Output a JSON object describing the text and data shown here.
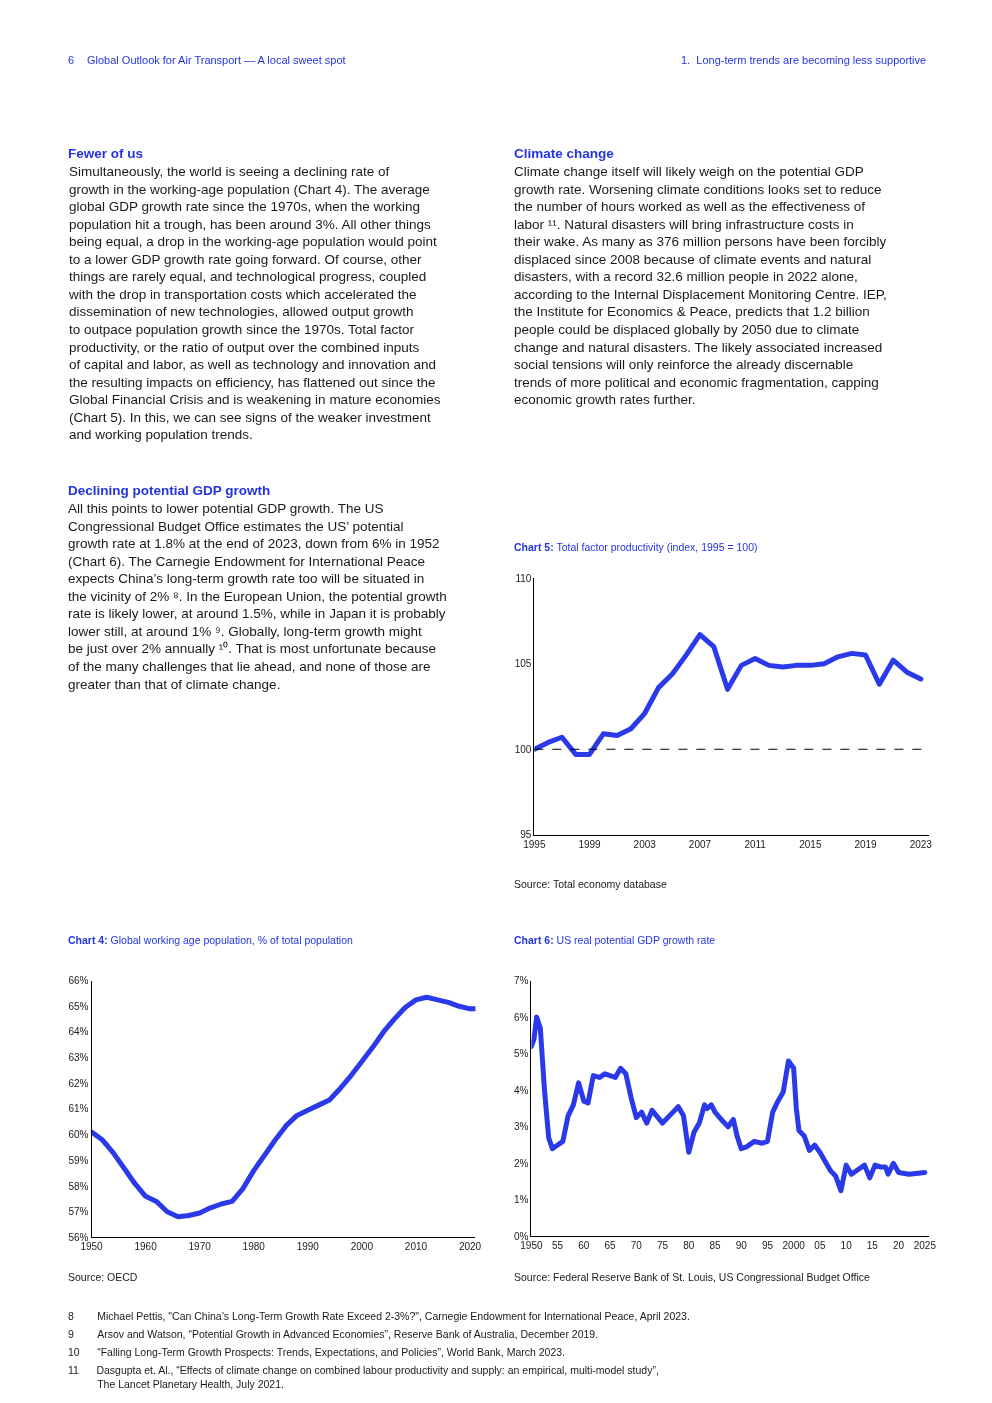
{
  "chart_data": [
    {
      "type": "other",
      "annotations": [
        "6",
        "Global Outlook for Air Transport — A local sweet spot",
        "1.  Long-term trends are becoming less supportive"
      ]
    },
    {
      "type": "other",
      "title": "Fewer of us",
      "annotations": [
        "Simultaneously, the world is seeing a declining rate of\ngrowth in the working-age population (Chart 4). The average\nglobal GDP growth rate since the 1970s, when the working\npopulation hit a trough, has been around 3%. All other things\nbeing equal, a drop in the working-age population would point\nto a lower GDP growth rate going forward. Of course, other\nthings are rarely equal, and technological progress, coupled\nwith the drop in transportation costs which accelerated the\ndissemination of new technologies, allowed output growth\nto outpace population growth since the 1970s. Total factor\nproductivity, or the ratio of output over the combined inputs\nof capital and labor, as well as technology and innovation and\nthe resulting impacts on efficiency, has flattened out since the\nGlobal Financial Crisis and is weakening in mature economies\n(Chart 5). In this, we can see signs of the weaker investment\nand working population trends."
      ]
    },
    {
      "type": "other",
      "title": "Declining potential GDP growth",
      "annotations": [
        "All this points to lower potential GDP growth. The US\nCongressional Budget Office estimates the US’ potential\ngrowth rate at 1.8% at the end of 2023, down from 6% in 1952\n(Chart 6). The Carnegie Endowment for International Peace\nexpects China’s long-term growth rate too will be situated in\nthe vicinity of 2% ⁸. In the European Union, the potential growth\nrate is likely lower, at around 1.5%, while in Japan it is probably\nlower still, at around 1% ⁹. Globally, long-term growth might\nbe just over 2% annually ¹⁰. That is most unfortunate because\nof the many challenges that lie ahead, and none of those are\ngreater than that of climate change."
      ]
    },
    {
      "type": "other",
      "title": "Climate change",
      "annotations": [
        "Climate change itself will likely weigh on the potential GDP\ngrowth rate. Worsening climate conditions looks set to reduce\nthe number of hours worked as well as the effectiveness of\nlabor ¹¹. Natural disasters will bring infrastructure costs in\ntheir wake. As many as 376 million persons have been forcibly\ndisplaced since 2008 because of climate events and natural\ndisasters, with a record 32.6 million people in 2022 alone,\naccording to the Internal Displacement Monitoring Centre. IEP,\nthe Institute for Economics & Peace, predicts that 1.2 billion\npeople could be displaced globally by 2050 due to climate\nchange and natural disasters. The likely associated increased\nsocial tensions will only reinforce the already discernable\ntrends of more political and economic fragmentation, capping\neconomic growth rates further."
      ]
    },
    {
      "type": "line",
      "title": "Chart 5: Total factor productivity (index, 1995 = 100)",
      "color": "#2b3ae8",
      "x": [
        1995,
        1996,
        1997,
        1998,
        1999,
        2000,
        2001,
        2002,
        2003,
        2004,
        2005,
        2006,
        2007,
        2008,
        2009,
        2010,
        2011,
        2012,
        2013,
        2014,
        2015,
        2016,
        2017,
        2018,
        2019,
        2020,
        2021,
        2022,
        2023
      ],
      "values": [
        100.0,
        100.4,
        100.7,
        99.7,
        99.7,
        100.9,
        100.8,
        101.2,
        102.1,
        103.6,
        104.4,
        105.5,
        106.7,
        106.0,
        103.5,
        104.9,
        105.3,
        104.9,
        104.8,
        104.9,
        104.9,
        105.0,
        105.4,
        105.6,
        105.5,
        103.8,
        105.2,
        104.5,
        104.1
      ],
      "xlim": [
        1995,
        2023.6
      ],
      "xticks": [
        1995,
        1999,
        2003,
        2007,
        2011,
        2015,
        2019,
        2023
      ],
      "ylim": [
        95,
        110
      ],
      "yticks": [
        95,
        100,
        105,
        110
      ],
      "ref_lines": [
        {
          "axis": "y",
          "value": 100,
          "line_style": "dashed",
          "color": "#000000"
        }
      ],
      "annotations": [
        "Source: Total economy database"
      ]
    },
    {
      "type": "line",
      "title": "Chart 4: Global working age population, % of total population",
      "color": "#2b3ae8",
      "x": [
        1950,
        1952,
        1954,
        1956,
        1958,
        1960,
        1962,
        1964,
        1966,
        1968,
        1970,
        1972,
        1974,
        1976,
        1978,
        1980,
        1982,
        1984,
        1986,
        1988,
        1990,
        1992,
        1994,
        1996,
        1998,
        2000,
        2002,
        2004,
        2006,
        2008,
        2010,
        2012,
        2014,
        2016,
        2018,
        2020,
        2021
      ],
      "values": [
        60.1,
        59.8,
        59.3,
        58.7,
        58.1,
        57.6,
        57.4,
        57.0,
        56.8,
        56.85,
        56.95,
        57.15,
        57.3,
        57.4,
        57.9,
        58.6,
        59.2,
        59.8,
        60.35,
        60.75,
        60.95,
        61.15,
        61.35,
        61.8,
        62.3,
        62.85,
        63.4,
        64.0,
        64.5,
        64.95,
        65.25,
        65.35,
        65.25,
        65.15,
        65.0,
        64.9,
        64.9
      ],
      "xlim": [
        1950,
        2021
      ],
      "xticks": [
        1950,
        1960,
        1970,
        1980,
        1990,
        2000,
        2010,
        2020
      ],
      "ylim": [
        56,
        66
      ],
      "yticks": [
        {
          "value": 56,
          "label": "56%"
        },
        {
          "value": 57,
          "label": "57%"
        },
        {
          "value": 58,
          "label": "58%"
        },
        {
          "value": 59,
          "label": "59%"
        },
        {
          "value": 60,
          "label": "60%"
        },
        {
          "value": 61,
          "label": "61%"
        },
        {
          "value": 62,
          "label": "62%"
        },
        {
          "value": 63,
          "label": "63%"
        },
        {
          "value": 64,
          "label": "64%"
        },
        {
          "value": 65,
          "label": "65%"
        },
        {
          "value": 66,
          "label": "66%"
        }
      ],
      "annotations": [
        "Source: OECD"
      ]
    },
    {
      "type": "line",
      "title": "Chart 6: US real potential GDP growth rate",
      "color": "#2b3ae8",
      "x": [
        1950,
        1950.5,
        1951,
        1951.7,
        1952.5,
        1953.3,
        1954,
        1955,
        1956,
        1957,
        1958,
        1959,
        1960,
        1960.8,
        1961.8,
        1963,
        1964,
        1966,
        1967,
        1968,
        1969,
        1970,
        1971,
        1972,
        1973,
        1975,
        1977,
        1978,
        1979,
        1980,
        1981,
        1982,
        1983,
        1983.5,
        1984.3,
        1985,
        1986.5,
        1987.5,
        1988.5,
        1989.2,
        1990,
        1991,
        1992.5,
        1994,
        1995,
        1996,
        1997,
        1998,
        1999,
        2000,
        2000.5,
        2001,
        2002,
        2003,
        2004,
        2005,
        2006,
        2007,
        2008,
        2009,
        2010,
        2011,
        2012.5,
        2013.5,
        2014.5,
        2015.5,
        2016.5,
        2017.5,
        2018,
        2019,
        2020,
        2022,
        2025
      ],
      "values": [
        5.2,
        5.4,
        6.0,
        5.7,
        4.0,
        2.7,
        2.4,
        2.5,
        2.6,
        3.3,
        3.6,
        4.2,
        3.7,
        3.65,
        4.4,
        4.35,
        4.45,
        4.35,
        4.6,
        4.45,
        3.8,
        3.25,
        3.4,
        3.1,
        3.45,
        3.1,
        3.4,
        3.55,
        3.3,
        2.3,
        2.85,
        3.1,
        3.6,
        3.5,
        3.6,
        3.4,
        3.15,
        3.0,
        3.2,
        2.75,
        2.4,
        2.45,
        2.6,
        2.55,
        2.6,
        3.4,
        3.7,
        3.95,
        4.8,
        4.6,
        3.5,
        2.9,
        2.75,
        2.35,
        2.5,
        2.3,
        2.05,
        1.8,
        1.65,
        1.25,
        1.95,
        1.7,
        1.85,
        1.95,
        1.6,
        1.95,
        1.9,
        1.9,
        1.7,
        2.0,
        1.75,
        1.7,
        1.75
      ],
      "xlim": [
        1950,
        2025.8
      ],
      "xticks": [
        1950,
        {
          "value": 1955,
          "label": "55"
        },
        {
          "value": 1960,
          "label": "60"
        },
        {
          "value": 1965,
          "label": "65"
        },
        {
          "value": 1970,
          "label": "70"
        },
        {
          "value": 1975,
          "label": "75"
        },
        {
          "value": 1980,
          "label": "80"
        },
        {
          "value": 1985,
          "label": "85"
        },
        {
          "value": 1990,
          "label": "90"
        },
        {
          "value": 1995,
          "label": "95"
        },
        2000,
        {
          "value": 2005,
          "label": "05"
        },
        {
          "value": 2010,
          "label": "10"
        },
        {
          "value": 2015,
          "label": "15"
        },
        {
          "value": 2020,
          "label": "20"
        },
        2025
      ],
      "ylim": [
        0,
        7
      ],
      "yticks": [
        {
          "value": 0,
          "label": "0%"
        },
        {
          "value": 1,
          "label": "1%"
        },
        {
          "value": 2,
          "label": "2%"
        },
        {
          "value": 3,
          "label": "3%"
        },
        {
          "value": 4,
          "label": "4%"
        },
        {
          "value": 5,
          "label": "5%"
        },
        {
          "value": 6,
          "label": "6%"
        },
        {
          "value": 7,
          "label": "7%"
        }
      ],
      "annotations": [
        "Source: Federal Reserve Bank of St. Louis, US Congressional Budget Office"
      ]
    },
    {
      "type": "other",
      "annotations": [
        "8",
        "Michael Pettis, \"Can China’s Long-Term Growth Rate Exceed 2-3%?\", Carnegie Endowment for International Peace, April 2023.",
        "9",
        "Arsov and Watson, “Potential Growth in Advanced Economies”, Reserve Bank of Australia, December 2019.",
        "10",
        "“Falling Long-Term Growth Prospects: Trends, Expectations, and Policies”, World Bank, March 2023.",
        "11",
        "Dasgupta et. Al., “Effects of climate change on combined labour productivity and supply: an empirical, multi-model study”,\nThe Lancet Planetary Health, July 2021."
      ]
    }
  ]
}
